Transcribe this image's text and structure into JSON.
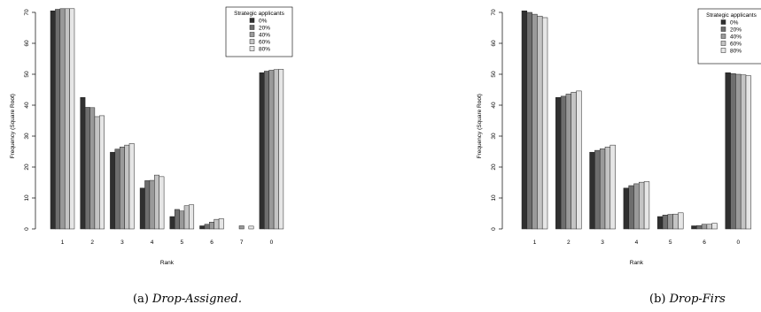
{
  "chart_data": [
    {
      "type": "bar",
      "caption_prefix": "(a)",
      "caption_title": "Drop-Assigned.",
      "xlabel": "Rank",
      "ylabel": "Frequency (Square Root)",
      "ylim": [
        0,
        71
      ],
      "yticks": [
        0,
        10,
        20,
        30,
        40,
        50,
        60,
        70
      ],
      "legend_title": "Strategic applicants",
      "legend_position": "top-right",
      "categories": [
        "1",
        "2",
        "3",
        "4",
        "5",
        "6",
        "7",
        "0"
      ],
      "series": [
        {
          "name": "0%",
          "color": "#303030",
          "values": [
            70.5,
            42.5,
            24.8,
            13.2,
            4.0,
            1.0,
            0.0,
            50.5
          ]
        },
        {
          "name": "20%",
          "color": "#6e6e6e",
          "values": [
            71.0,
            39.3,
            25.8,
            15.6,
            6.3,
            1.5,
            0.0,
            51.0
          ]
        },
        {
          "name": "40%",
          "color": "#9a9a9a",
          "values": [
            71.2,
            39.2,
            26.5,
            15.7,
            5.8,
            2.2,
            1.0,
            51.3
          ]
        },
        {
          "name": "60%",
          "color": "#c4c4c4",
          "values": [
            71.2,
            36.3,
            27.1,
            17.4,
            7.5,
            3.1,
            0.0,
            51.5
          ]
        },
        {
          "name": "80%",
          "color": "#e6e6e6",
          "values": [
            71.2,
            36.6,
            27.6,
            16.9,
            7.8,
            3.3,
            0.9,
            51.6
          ]
        }
      ]
    },
    {
      "type": "bar",
      "caption_prefix": "(b)",
      "caption_title": "Drop-Firs",
      "xlabel": "Rank",
      "ylabel": "Frequency (Square Root)",
      "ylim": [
        0,
        71
      ],
      "yticks": [
        0,
        10,
        20,
        30,
        40,
        50,
        60,
        70
      ],
      "legend_title": "Strategic applicants",
      "legend_position": "top-right",
      "categories": [
        "1",
        "2",
        "3",
        "4",
        "5",
        "6",
        "0"
      ],
      "series": [
        {
          "name": "0%",
          "color": "#303030",
          "values": [
            70.5,
            42.5,
            24.8,
            13.2,
            4.0,
            1.0,
            50.5
          ]
        },
        {
          "name": "20%",
          "color": "#6e6e6e",
          "values": [
            70.0,
            42.9,
            25.4,
            14.0,
            4.5,
            1.1,
            50.2
          ]
        },
        {
          "name": "40%",
          "color": "#9a9a9a",
          "values": [
            69.4,
            43.6,
            25.9,
            14.6,
            4.7,
            1.5,
            50.0
          ]
        },
        {
          "name": "60%",
          "color": "#c4c4c4",
          "values": [
            68.8,
            44.2,
            26.5,
            15.1,
            4.8,
            1.5,
            49.8
          ]
        },
        {
          "name": "80%",
          "color": "#e6e6e6",
          "values": [
            68.3,
            44.6,
            27.1,
            15.3,
            5.2,
            1.8,
            49.5
          ]
        }
      ]
    }
  ]
}
